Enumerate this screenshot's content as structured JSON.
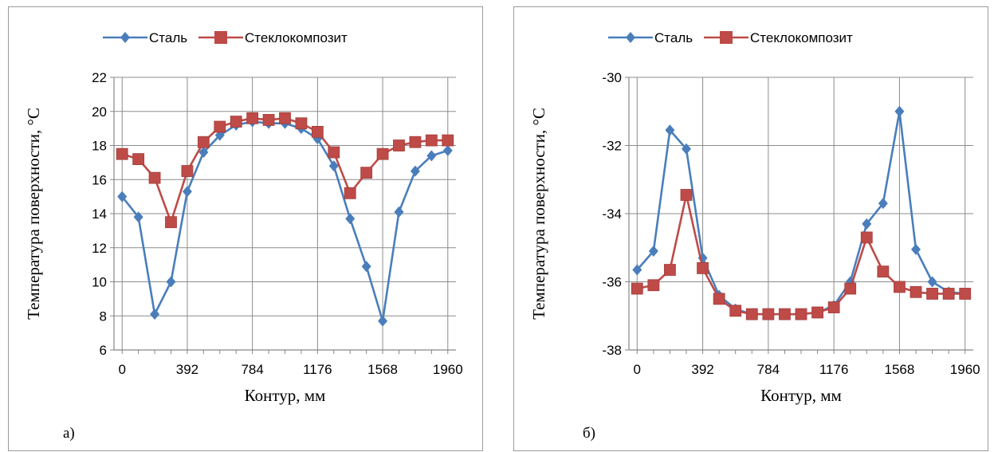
{
  "colors": {
    "steel": "#4a7ebb",
    "composite": "#be4b48",
    "grid": "#8c8c8c",
    "axis": "#868686"
  },
  "chart_data": [
    {
      "id": "a",
      "type": "line",
      "panel_label": "а)",
      "xlabel": "Контур, мм",
      "ylabel": "Температура поверхности, °С",
      "legend_position": "top",
      "grid": true,
      "xlim": [
        0,
        1960
      ],
      "ylim": [
        6,
        22
      ],
      "xticks": [
        "0",
        "392",
        "784",
        "1176",
        "1568",
        "1960"
      ],
      "yticks": [
        "6",
        "8",
        "10",
        "12",
        "14",
        "16",
        "18",
        "20",
        "22"
      ],
      "x": [
        0,
        98,
        196,
        294,
        392,
        490,
        588,
        686,
        784,
        882,
        980,
        1078,
        1176,
        1274,
        1372,
        1470,
        1568,
        1666,
        1764,
        1862,
        1960
      ],
      "series": [
        {
          "name": "Сталь",
          "color_key": "steel",
          "marker": "diamond",
          "values": [
            15.0,
            13.8,
            8.1,
            10.0,
            15.3,
            17.6,
            18.6,
            19.2,
            19.4,
            19.3,
            19.3,
            19.0,
            18.4,
            16.8,
            13.7,
            10.9,
            7.7,
            14.1,
            16.5,
            17.4,
            17.7
          ]
        },
        {
          "name": "Стеклокомпозит",
          "color_key": "composite",
          "marker": "square",
          "values": [
            17.5,
            17.2,
            16.1,
            13.5,
            16.5,
            18.2,
            19.1,
            19.4,
            19.6,
            19.5,
            19.6,
            19.3,
            18.8,
            17.6,
            15.2,
            16.4,
            17.5,
            18.0,
            18.2,
            18.3,
            18.3
          ]
        }
      ]
    },
    {
      "id": "b",
      "type": "line",
      "panel_label": "б)",
      "xlabel": "Контур, мм",
      "ylabel": "Температура поверхности, °С",
      "legend_position": "top",
      "grid": true,
      "xlim": [
        0,
        1960
      ],
      "ylim": [
        -38,
        -30
      ],
      "xticks": [
        "0",
        "392",
        "784",
        "1176",
        "1568",
        "1960"
      ],
      "yticks": [
        "-38",
        "-36",
        "-34",
        "-32",
        "-30"
      ],
      "x": [
        0,
        98,
        196,
        294,
        392,
        490,
        588,
        686,
        784,
        882,
        980,
        1078,
        1176,
        1274,
        1372,
        1470,
        1568,
        1666,
        1764,
        1862,
        1960
      ],
      "series": [
        {
          "name": "Сталь",
          "color_key": "steel",
          "marker": "diamond",
          "values": [
            -35.65,
            -35.1,
            -31.55,
            -32.1,
            -35.3,
            -36.4,
            -36.8,
            -36.95,
            -36.95,
            -36.95,
            -36.95,
            -36.9,
            -36.7,
            -36.0,
            -34.3,
            -33.7,
            -31.0,
            -35.05,
            -36.0,
            -36.3,
            -36.35
          ]
        },
        {
          "name": "Стеклокомпозит",
          "color_key": "composite",
          "marker": "square",
          "values": [
            -36.2,
            -36.1,
            -35.65,
            -33.45,
            -35.6,
            -36.5,
            -36.85,
            -36.95,
            -36.95,
            -36.95,
            -36.95,
            -36.9,
            -36.75,
            -36.2,
            -34.7,
            -35.7,
            -36.15,
            -36.3,
            -36.35,
            -36.35,
            -36.35
          ]
        }
      ]
    }
  ]
}
